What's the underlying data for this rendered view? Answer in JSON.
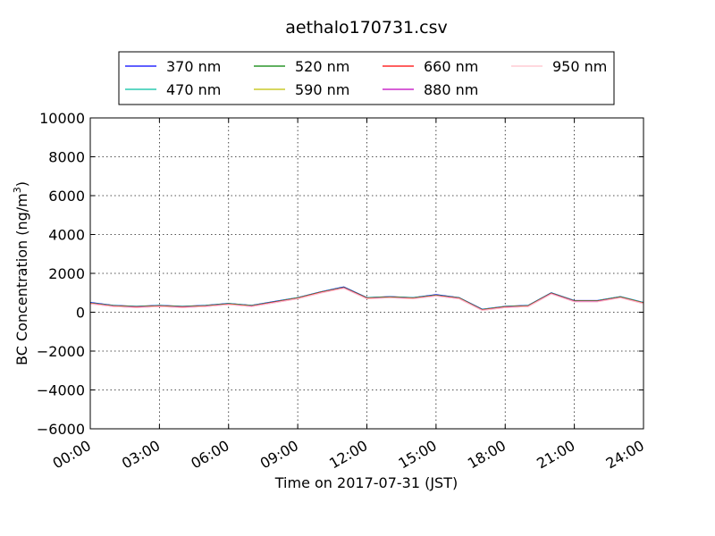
{
  "chart_data": {
    "type": "line",
    "title": "aethalo170731.csv",
    "xlabel": "Time on 2017-07-31 (JST)",
    "ylabel": "BC Concentration (ng/m³)",
    "ylabel_parts": {
      "main": "BC Concentration (ng/m",
      "sup": "3",
      "end": ")"
    },
    "xlim": [
      "00:00",
      "24:00"
    ],
    "ylim": [
      -6000,
      10000
    ],
    "x_ticks": [
      "00:00",
      "03:00",
      "06:00",
      "09:00",
      "12:00",
      "15:00",
      "18:00",
      "21:00",
      "24:00"
    ],
    "y_ticks": [
      -6000,
      -4000,
      -2000,
      0,
      2000,
      4000,
      6000,
      8000,
      10000
    ],
    "grid": true,
    "legend_position": "top-center",
    "series": [
      {
        "name": "370 nm",
        "color": "#0000ff",
        "x": [
          "00:00",
          "01:00",
          "02:00",
          "03:00",
          "04:00",
          "05:00",
          "06:00",
          "07:00",
          "08:00",
          "09:00",
          "10:00",
          "11:00",
          "12:00",
          "13:00",
          "14:00",
          "15:00",
          "16:00",
          "17:00",
          "18:00",
          "19:00",
          "20:00",
          "21:00",
          "22:00",
          "23:00",
          "24:00"
        ],
        "y": [
          500,
          350,
          300,
          350,
          300,
          350,
          450,
          350,
          550,
          750,
          1050,
          1300,
          750,
          800,
          750,
          900,
          750,
          150,
          300,
          350,
          1000,
          600,
          600,
          800,
          500
        ]
      },
      {
        "name": "470 nm",
        "color": "#00bfa0",
        "x": [
          "00:00",
          "01:00",
          "02:00",
          "03:00",
          "04:00",
          "05:00",
          "06:00",
          "07:00",
          "08:00",
          "09:00",
          "10:00",
          "11:00",
          "12:00",
          "13:00",
          "14:00",
          "15:00",
          "16:00",
          "17:00",
          "18:00",
          "19:00",
          "20:00",
          "21:00",
          "22:00",
          "23:00",
          "24:00"
        ],
        "y": [
          480,
          340,
          290,
          340,
          290,
          340,
          440,
          340,
          540,
          740,
          1040,
          1280,
          740,
          790,
          740,
          880,
          740,
          140,
          290,
          340,
          990,
          590,
          590,
          790,
          490
        ]
      },
      {
        "name": "520 nm",
        "color": "#008000",
        "x": [
          "00:00",
          "01:00",
          "02:00",
          "03:00",
          "04:00",
          "05:00",
          "06:00",
          "07:00",
          "08:00",
          "09:00",
          "10:00",
          "11:00",
          "12:00",
          "13:00",
          "14:00",
          "15:00",
          "16:00",
          "17:00",
          "18:00",
          "19:00",
          "20:00",
          "21:00",
          "22:00",
          "23:00",
          "24:00"
        ],
        "y": [
          470,
          330,
          280,
          330,
          280,
          330,
          430,
          330,
          530,
          730,
          1030,
          1270,
          730,
          780,
          730,
          870,
          730,
          130,
          280,
          330,
          980,
          580,
          580,
          780,
          480
        ]
      },
      {
        "name": "590 nm",
        "color": "#bfbf00",
        "x": [
          "00:00",
          "01:00",
          "02:00",
          "03:00",
          "04:00",
          "05:00",
          "06:00",
          "07:00",
          "08:00",
          "09:00",
          "10:00",
          "11:00",
          "12:00",
          "13:00",
          "14:00",
          "15:00",
          "16:00",
          "17:00",
          "18:00",
          "19:00",
          "20:00",
          "21:00",
          "22:00",
          "23:00",
          "24:00"
        ],
        "y": [
          460,
          320,
          270,
          320,
          270,
          320,
          420,
          320,
          520,
          720,
          1020,
          1260,
          720,
          770,
          720,
          860,
          720,
          120,
          270,
          320,
          970,
          570,
          570,
          770,
          470
        ]
      },
      {
        "name": "660 nm",
        "color": "#ff0000",
        "x": [
          "00:00",
          "01:00",
          "02:00",
          "03:00",
          "04:00",
          "05:00",
          "06:00",
          "07:00",
          "08:00",
          "09:00",
          "10:00",
          "11:00",
          "12:00",
          "13:00",
          "14:00",
          "15:00",
          "16:00",
          "17:00",
          "18:00",
          "19:00",
          "20:00",
          "21:00",
          "22:00",
          "23:00",
          "24:00"
        ],
        "y": [
          450,
          310,
          260,
          310,
          260,
          310,
          410,
          310,
          510,
          710,
          1010,
          1250,
          710,
          760,
          710,
          850,
          710,
          110,
          260,
          310,
          960,
          560,
          560,
          760,
          460
        ]
      },
      {
        "name": "880 nm",
        "color": "#bf00bf",
        "x": [
          "00:00",
          "01:00",
          "02:00",
          "03:00",
          "04:00",
          "05:00",
          "06:00",
          "07:00",
          "08:00",
          "09:00",
          "10:00",
          "11:00",
          "12:00",
          "13:00",
          "14:00",
          "15:00",
          "16:00",
          "17:00",
          "18:00",
          "19:00",
          "20:00",
          "21:00",
          "22:00",
          "23:00",
          "24:00"
        ],
        "y": [
          440,
          300,
          250,
          300,
          250,
          300,
          400,
          300,
          500,
          700,
          1000,
          1240,
          700,
          750,
          700,
          840,
          700,
          100,
          250,
          300,
          950,
          550,
          550,
          750,
          450
        ]
      },
      {
        "name": "950 nm",
        "color": "#ffc0cb",
        "x": [
          "00:00",
          "01:00",
          "02:00",
          "03:00",
          "04:00",
          "05:00",
          "06:00",
          "07:00",
          "08:00",
          "09:00",
          "10:00",
          "11:00",
          "12:00",
          "13:00",
          "14:00",
          "15:00",
          "16:00",
          "17:00",
          "18:00",
          "19:00",
          "20:00",
          "21:00",
          "22:00",
          "23:00",
          "24:00"
        ],
        "y": [
          430,
          290,
          240,
          290,
          240,
          290,
          390,
          290,
          490,
          690,
          990,
          1230,
          690,
          740,
          690,
          830,
          690,
          90,
          240,
          290,
          940,
          540,
          540,
          740,
          440
        ]
      }
    ]
  }
}
